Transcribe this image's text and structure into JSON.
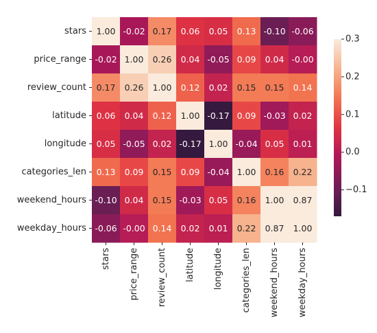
{
  "chart_data": {
    "type": "heatmap",
    "title": "",
    "xlabel": "",
    "ylabel": "",
    "categories": [
      "stars",
      "price_range",
      "review_count",
      "latitude",
      "longitude",
      "categories_len",
      "weekend_hours",
      "weekday_hours"
    ],
    "matrix": [
      [
        1.0,
        -0.02,
        0.17,
        0.06,
        0.05,
        0.13,
        -0.1,
        -0.06
      ],
      [
        -0.02,
        1.0,
        0.26,
        0.04,
        -0.05,
        0.09,
        0.04,
        -0.0
      ],
      [
        0.17,
        0.26,
        1.0,
        0.12,
        0.02,
        0.15,
        0.15,
        0.14
      ],
      [
        0.06,
        0.04,
        0.12,
        1.0,
        -0.17,
        0.09,
        -0.03,
        0.02
      ],
      [
        0.05,
        -0.05,
        0.02,
        -0.17,
        1.0,
        -0.04,
        0.05,
        0.01
      ],
      [
        0.13,
        0.09,
        0.15,
        0.09,
        -0.04,
        1.0,
        0.16,
        0.22
      ],
      [
        -0.1,
        0.04,
        0.15,
        -0.03,
        0.05,
        0.16,
        1.0,
        0.87
      ],
      [
        -0.06,
        -0.0,
        0.14,
        0.02,
        0.01,
        0.22,
        0.87,
        1.0
      ]
    ],
    "cell_labels": [
      [
        "1.00",
        "-0.02",
        "0.17",
        "0.06",
        "0.05",
        "0.13",
        "-0.10",
        "-0.06"
      ],
      [
        "-0.02",
        "1.00",
        "0.26",
        "0.04",
        "-0.05",
        "0.09",
        "0.04",
        "-0.00"
      ],
      [
        "0.17",
        "0.26",
        "1.00",
        "0.12",
        "0.02",
        "0.15",
        "0.15",
        "0.14"
      ],
      [
        "0.06",
        "0.04",
        "0.12",
        "1.00",
        "-0.17",
        "0.09",
        "-0.03",
        "0.02"
      ],
      [
        "0.05",
        "-0.05",
        "0.02",
        "-0.17",
        "1.00",
        "-0.04",
        "0.05",
        "0.01"
      ],
      [
        "0.13",
        "0.09",
        "0.15",
        "0.09",
        "-0.04",
        "1.00",
        "0.16",
        "0.22"
      ],
      [
        "-0.10",
        "0.04",
        "0.15",
        "-0.03",
        "0.05",
        "0.16",
        "1.00",
        "0.87"
      ],
      [
        "-0.06",
        "-0.00",
        "0.14",
        "0.02",
        "0.01",
        "0.22",
        "0.87",
        "1.00"
      ]
    ],
    "colorbar": {
      "vmin": -0.17,
      "vmax": 0.3,
      "ticks": [
        0.3,
        0.2,
        0.1,
        0.0,
        -0.1
      ],
      "tick_labels": [
        "0.3",
        "0.2",
        "0.1",
        "0.0",
        "−0.1"
      ]
    },
    "colormap": "rocket",
    "colormap_stops": [
      "#35193e",
      "#701f57",
      "#ad1759",
      "#e13342",
      "#f37651",
      "#f6b48f",
      "#faebdd"
    ],
    "dark_text_color": "#262626",
    "light_text_color": "#ffffff"
  }
}
